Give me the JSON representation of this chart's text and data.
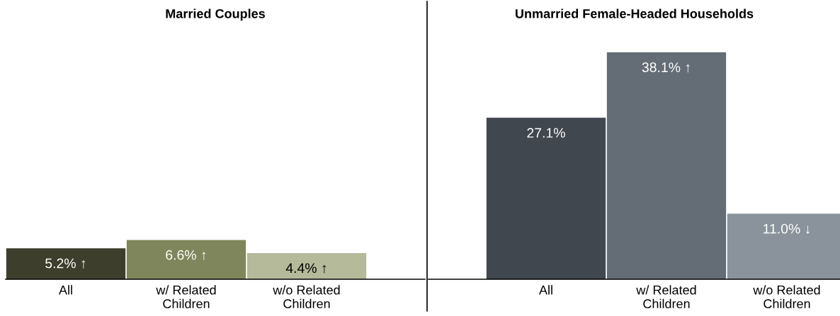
{
  "chart_data": [
    {
      "type": "bar",
      "title": "Married Couples",
      "categories": [
        "All",
        "w/ Related\nChildren",
        "w/o Related\nChildren"
      ],
      "values": [
        5.2,
        6.6,
        4.4
      ],
      "colors": [
        "#3d3f2c",
        "#7f865b",
        "#b4ba9a"
      ],
      "value_labels": [
        "5.2% ↑",
        "6.6% ↑",
        "4.4% ↑"
      ]
    },
    {
      "type": "bar",
      "title": "Unmarried Female-Headed Households",
      "categories": [
        "All",
        "w/ Related\nChildren",
        "w/o Related\nChildren"
      ],
      "values": [
        27.1,
        38.1,
        11.0
      ],
      "colors": [
        "#41474e",
        "#646d76",
        "#8a939b"
      ],
      "value_labels": [
        "27.1%",
        "38.1% ↑",
        "11.0% ↓"
      ]
    }
  ]
}
